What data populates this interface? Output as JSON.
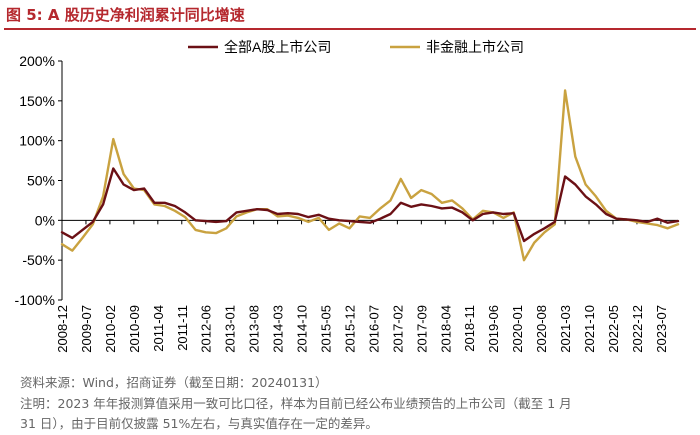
{
  "figure": {
    "title": "图 5:  A 股历史净利润累计同比增速",
    "source": "资料来源：Wind，招商证券（截至日期：20240131）",
    "note_line1": "注明：2023 年年报测算值采用一致可比口径，样本为目前已经公布业绩预告的上市公司（截至 1 月",
    "note_line2": "31 日），由于目前仅披露 51%左右，与真实值存在一定的差异。"
  },
  "chart_data": {
    "type": "line",
    "title": "",
    "xlabel": "",
    "ylabel": "",
    "ylim": [
      -100,
      200
    ],
    "yticks": [
      -100,
      -50,
      0,
      50,
      100,
      150,
      200
    ],
    "ytick_labels": [
      "-100%",
      "-50%",
      "0%",
      "50%",
      "100%",
      "150%",
      "200%"
    ],
    "grid": false,
    "legend_position": "top-center",
    "x_start": "2008-12",
    "x_end": "2023-12",
    "xtick_labels": [
      "2008-12",
      "2009-07",
      "2010-02",
      "2010-09",
      "2011-04",
      "2011-11",
      "2012-06",
      "2013-01",
      "2013-08",
      "2014-03",
      "2014-10",
      "2015-05",
      "2015-12",
      "2016-07",
      "2017-02",
      "2017-09",
      "2018-04",
      "2018-11",
      "2019-06",
      "2020-01",
      "2020-08",
      "2021-03",
      "2021-10",
      "2022-05",
      "2022-12",
      "2023-07"
    ],
    "series": [
      {
        "name": "全部A股上市公司",
        "color": "#6b1015",
        "points": [
          [
            "2008-12",
            -15
          ],
          [
            "2009-03",
            -22
          ],
          [
            "2009-06",
            -12
          ],
          [
            "2009-09",
            -2
          ],
          [
            "2009-12",
            20
          ],
          [
            "2010-03",
            65
          ],
          [
            "2010-06",
            45
          ],
          [
            "2010-09",
            38
          ],
          [
            "2010-12",
            40
          ],
          [
            "2011-03",
            22
          ],
          [
            "2011-06",
            22
          ],
          [
            "2011-09",
            18
          ],
          [
            "2011-12",
            10
          ],
          [
            "2012-03",
            0
          ],
          [
            "2012-06",
            -1
          ],
          [
            "2012-09",
            -2
          ],
          [
            "2012-12",
            -1
          ],
          [
            "2013-03",
            10
          ],
          [
            "2013-06",
            12
          ],
          [
            "2013-09",
            14
          ],
          [
            "2013-12",
            13
          ],
          [
            "2014-03",
            8
          ],
          [
            "2014-06",
            9
          ],
          [
            "2014-09",
            8
          ],
          [
            "2014-12",
            4
          ],
          [
            "2015-03",
            7
          ],
          [
            "2015-06",
            2
          ],
          [
            "2015-09",
            0
          ],
          [
            "2015-12",
            -1
          ],
          [
            "2016-03",
            -2
          ],
          [
            "2016-06",
            -3
          ],
          [
            "2016-09",
            2
          ],
          [
            "2016-12",
            8
          ],
          [
            "2017-03",
            22
          ],
          [
            "2017-06",
            17
          ],
          [
            "2017-09",
            20
          ],
          [
            "2017-12",
            18
          ],
          [
            "2018-03",
            15
          ],
          [
            "2018-06",
            16
          ],
          [
            "2018-09",
            10
          ],
          [
            "2018-12",
            0
          ],
          [
            "2019-03",
            8
          ],
          [
            "2019-06",
            10
          ],
          [
            "2019-09",
            8
          ],
          [
            "2019-12",
            9
          ],
          [
            "2020-03",
            -26
          ],
          [
            "2020-06",
            -17
          ],
          [
            "2020-09",
            -10
          ],
          [
            "2020-12",
            -2
          ],
          [
            "2021-03",
            55
          ],
          [
            "2021-06",
            45
          ],
          [
            "2021-09",
            30
          ],
          [
            "2021-12",
            20
          ],
          [
            "2022-03",
            8
          ],
          [
            "2022-06",
            2
          ],
          [
            "2022-09",
            1
          ],
          [
            "2022-12",
            0
          ],
          [
            "2023-03",
            -2
          ],
          [
            "2023-06",
            2
          ],
          [
            "2023-09",
            -3
          ],
          [
            "2023-12",
            -1
          ]
        ]
      },
      {
        "name": "非金融上市公司",
        "color": "#c9a240",
        "points": [
          [
            "2008-12",
            -30
          ],
          [
            "2009-03",
            -38
          ],
          [
            "2009-06",
            -22
          ],
          [
            "2009-09",
            -5
          ],
          [
            "2009-12",
            30
          ],
          [
            "2010-03",
            102
          ],
          [
            "2010-06",
            58
          ],
          [
            "2010-09",
            40
          ],
          [
            "2010-12",
            38
          ],
          [
            "2011-03",
            20
          ],
          [
            "2011-06",
            18
          ],
          [
            "2011-09",
            12
          ],
          [
            "2011-12",
            4
          ],
          [
            "2012-03",
            -12
          ],
          [
            "2012-06",
            -15
          ],
          [
            "2012-09",
            -16
          ],
          [
            "2012-12",
            -10
          ],
          [
            "2013-03",
            5
          ],
          [
            "2013-06",
            10
          ],
          [
            "2013-09",
            14
          ],
          [
            "2013-12",
            14
          ],
          [
            "2014-03",
            5
          ],
          [
            "2014-06",
            6
          ],
          [
            "2014-09",
            3
          ],
          [
            "2014-12",
            -2
          ],
          [
            "2015-03",
            3
          ],
          [
            "2015-06",
            -12
          ],
          [
            "2015-09",
            -4
          ],
          [
            "2015-12",
            -10
          ],
          [
            "2016-03",
            5
          ],
          [
            "2016-06",
            3
          ],
          [
            "2016-09",
            15
          ],
          [
            "2016-12",
            25
          ],
          [
            "2017-03",
            52
          ],
          [
            "2017-06",
            28
          ],
          [
            "2017-09",
            38
          ],
          [
            "2017-12",
            33
          ],
          [
            "2018-03",
            22
          ],
          [
            "2018-06",
            25
          ],
          [
            "2018-09",
            15
          ],
          [
            "2018-12",
            1
          ],
          [
            "2019-03",
            12
          ],
          [
            "2019-06",
            10
          ],
          [
            "2019-09",
            3
          ],
          [
            "2019-12",
            10
          ],
          [
            "2020-03",
            -50
          ],
          [
            "2020-06",
            -28
          ],
          [
            "2020-09",
            -15
          ],
          [
            "2020-12",
            -5
          ],
          [
            "2021-03",
            163
          ],
          [
            "2021-06",
            80
          ],
          [
            "2021-09",
            45
          ],
          [
            "2021-12",
            30
          ],
          [
            "2022-03",
            12
          ],
          [
            "2022-06",
            2
          ],
          [
            "2022-09",
            1
          ],
          [
            "2022-12",
            -2
          ],
          [
            "2023-03",
            -4
          ],
          [
            "2023-06",
            -6
          ],
          [
            "2023-09",
            -10
          ],
          [
            "2023-12",
            -5
          ]
        ]
      }
    ]
  }
}
